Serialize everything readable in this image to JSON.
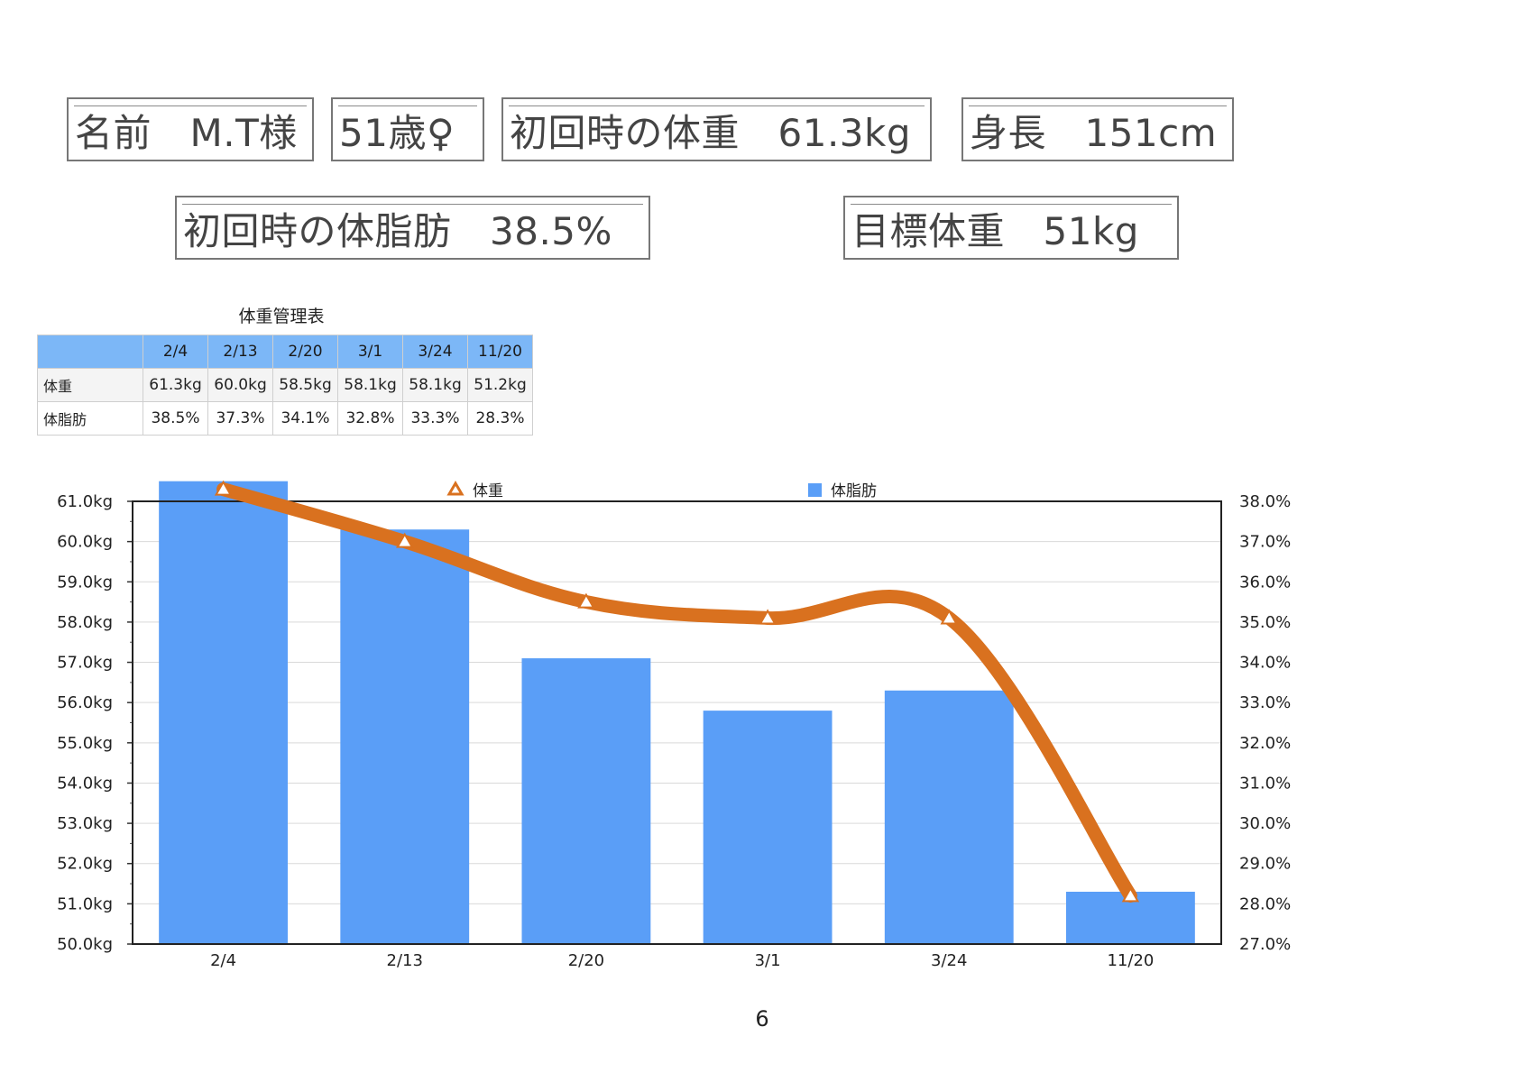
{
  "profile": {
    "name": "名前　M.T様",
    "age_sex": "51歳♀",
    "initial_weight": "初回時の体重　61.3kg",
    "height": "身長　151cm",
    "initial_body_fat": "初回時の体脂肪　38.5%",
    "target_weight": "目標体重　51kg"
  },
  "table": {
    "title": "体重管理表",
    "header_blank": "",
    "dates": [
      "2/4",
      "2/13",
      "2/20",
      "3/1",
      "3/24",
      "11/20"
    ],
    "rows": [
      {
        "label": "体重",
        "values": [
          "61.3kg",
          "60.0kg",
          "58.5kg",
          "58.1kg",
          "58.1kg",
          "51.2kg"
        ]
      },
      {
        "label": "体脂肪",
        "values": [
          "38.5%",
          "37.3%",
          "34.1%",
          "32.8%",
          "33.3%",
          "28.3%"
        ]
      }
    ]
  },
  "chart_data": {
    "type": "bar",
    "categories": [
      "2/4",
      "2/13",
      "2/20",
      "3/1",
      "3/24",
      "11/20"
    ],
    "series": [
      {
        "name": "体重",
        "kind": "line",
        "axis": "left",
        "color": "#d9711f",
        "marker": "triangle",
        "values": [
          61.3,
          60.0,
          58.5,
          58.1,
          58.1,
          51.2
        ]
      },
      {
        "name": "体脂肪",
        "kind": "bar",
        "axis": "right",
        "color": "#5a9ef7",
        "values": [
          38.5,
          37.3,
          34.1,
          32.8,
          33.3,
          28.3
        ]
      }
    ],
    "y_left": {
      "min": 50,
      "max": 61,
      "step": 1,
      "tick_labels": [
        "50.0kg",
        "51.0kg",
        "52.0kg",
        "53.0kg",
        "54.0kg",
        "55.0kg",
        "56.0kg",
        "57.0kg",
        "58.0kg",
        "59.0kg",
        "60.0kg",
        "61.0kg"
      ]
    },
    "y_right": {
      "min": 27,
      "max": 38,
      "step": 1,
      "tick_labels": [
        "27.0%",
        "28.0%",
        "29.0%",
        "30.0%",
        "31.0%",
        "32.0%",
        "33.0%",
        "34.0%",
        "35.0%",
        "36.0%",
        "37.0%",
        "38.0%"
      ]
    },
    "grid": true,
    "legend_position": "top"
  },
  "page_number": "6"
}
